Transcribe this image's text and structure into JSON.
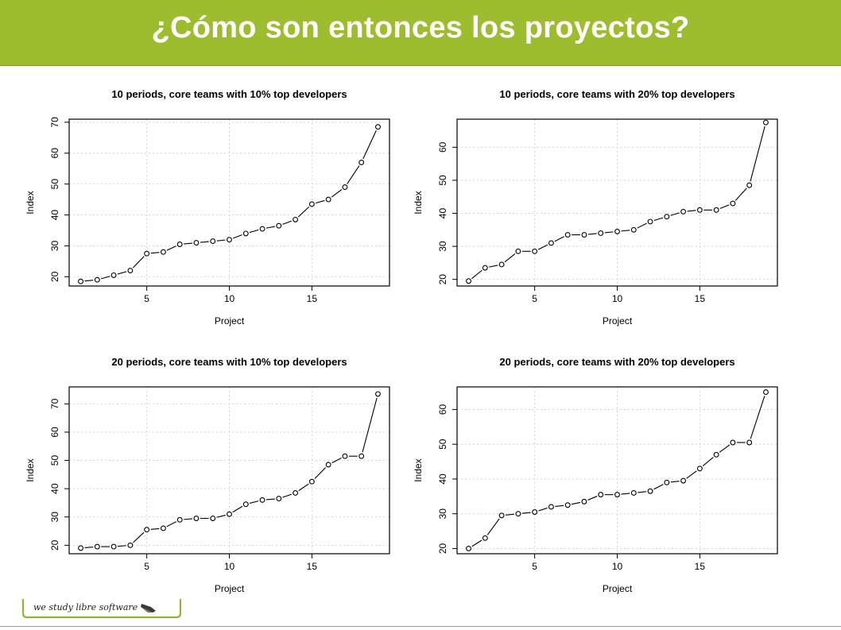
{
  "header": {
    "title": "¿Cómo son entonces los proyectos?"
  },
  "logo": {
    "text": "we study libre software"
  },
  "colors": {
    "header_bg": "#9dbd2f",
    "header_text": "#ffffff",
    "logo_green": "#8db82b"
  },
  "chart_data": [
    {
      "type": "line",
      "title": "10 periods, core teams with 10% top developers",
      "xlabel": "Project",
      "ylabel": "Index",
      "xlim": [
        0.3,
        19.7
      ],
      "ylim": [
        17,
        71
      ],
      "xticks": [
        5,
        10,
        15
      ],
      "yticks": [
        20,
        30,
        40,
        50,
        60,
        70
      ],
      "grid": true,
      "x": [
        1,
        2,
        3,
        4,
        5,
        6,
        7,
        8,
        9,
        10,
        11,
        12,
        13,
        14,
        15,
        16,
        17,
        18,
        19
      ],
      "values": [
        18.5,
        19,
        20.5,
        22,
        27.5,
        28,
        30.5,
        31,
        31.5,
        32,
        34,
        35.5,
        36.5,
        38.5,
        43.5,
        45,
        49,
        57,
        68.5
      ]
    },
    {
      "type": "line",
      "title": "10 periods, core teams with 20% top developers",
      "xlabel": "Project",
      "ylabel": "Index",
      "xlim": [
        0.3,
        19.7
      ],
      "ylim": [
        18,
        68.5
      ],
      "xticks": [
        5,
        10,
        15
      ],
      "yticks": [
        20,
        30,
        40,
        50,
        60
      ],
      "grid": true,
      "x": [
        1,
        2,
        3,
        4,
        5,
        6,
        7,
        8,
        9,
        10,
        11,
        12,
        13,
        14,
        15,
        16,
        17,
        18,
        19
      ],
      "values": [
        19.5,
        23.5,
        24.5,
        28.5,
        28.5,
        31,
        33.5,
        33.5,
        34,
        34.5,
        35,
        37.5,
        39,
        40.5,
        41,
        41,
        43,
        48.5,
        67.5
      ]
    },
    {
      "type": "line",
      "title": "20 periods, core teams with 10% top developers",
      "xlabel": "Project",
      "ylabel": "Index",
      "xlim": [
        0.3,
        19.7
      ],
      "ylim": [
        17,
        76
      ],
      "xticks": [
        5,
        10,
        15
      ],
      "yticks": [
        20,
        30,
        40,
        50,
        60,
        70
      ],
      "grid": true,
      "x": [
        1,
        2,
        3,
        4,
        5,
        6,
        7,
        8,
        9,
        10,
        11,
        12,
        13,
        14,
        15,
        16,
        17,
        18,
        19
      ],
      "values": [
        19,
        19.5,
        19.5,
        20,
        25.5,
        26,
        29,
        29.5,
        29.5,
        31,
        34.5,
        36,
        36.5,
        38.5,
        42.5,
        48.5,
        51.5,
        51.5,
        73.5
      ]
    },
    {
      "type": "line",
      "title": "20 periods, core teams with 20% top developers",
      "xlabel": "Project",
      "ylabel": "Index",
      "xlim": [
        0.3,
        19.7
      ],
      "ylim": [
        18.5,
        66.5
      ],
      "xticks": [
        5,
        10,
        15
      ],
      "yticks": [
        20,
        30,
        40,
        50,
        60
      ],
      "grid": true,
      "x": [
        1,
        2,
        3,
        4,
        5,
        6,
        7,
        8,
        9,
        10,
        11,
        12,
        13,
        14,
        15,
        16,
        17,
        18,
        19
      ],
      "values": [
        20,
        23,
        29.5,
        30,
        30.5,
        32,
        32.5,
        33.5,
        35.5,
        35.5,
        36,
        36.5,
        39,
        39.5,
        43,
        47,
        50.5,
        50.5,
        65
      ]
    }
  ]
}
